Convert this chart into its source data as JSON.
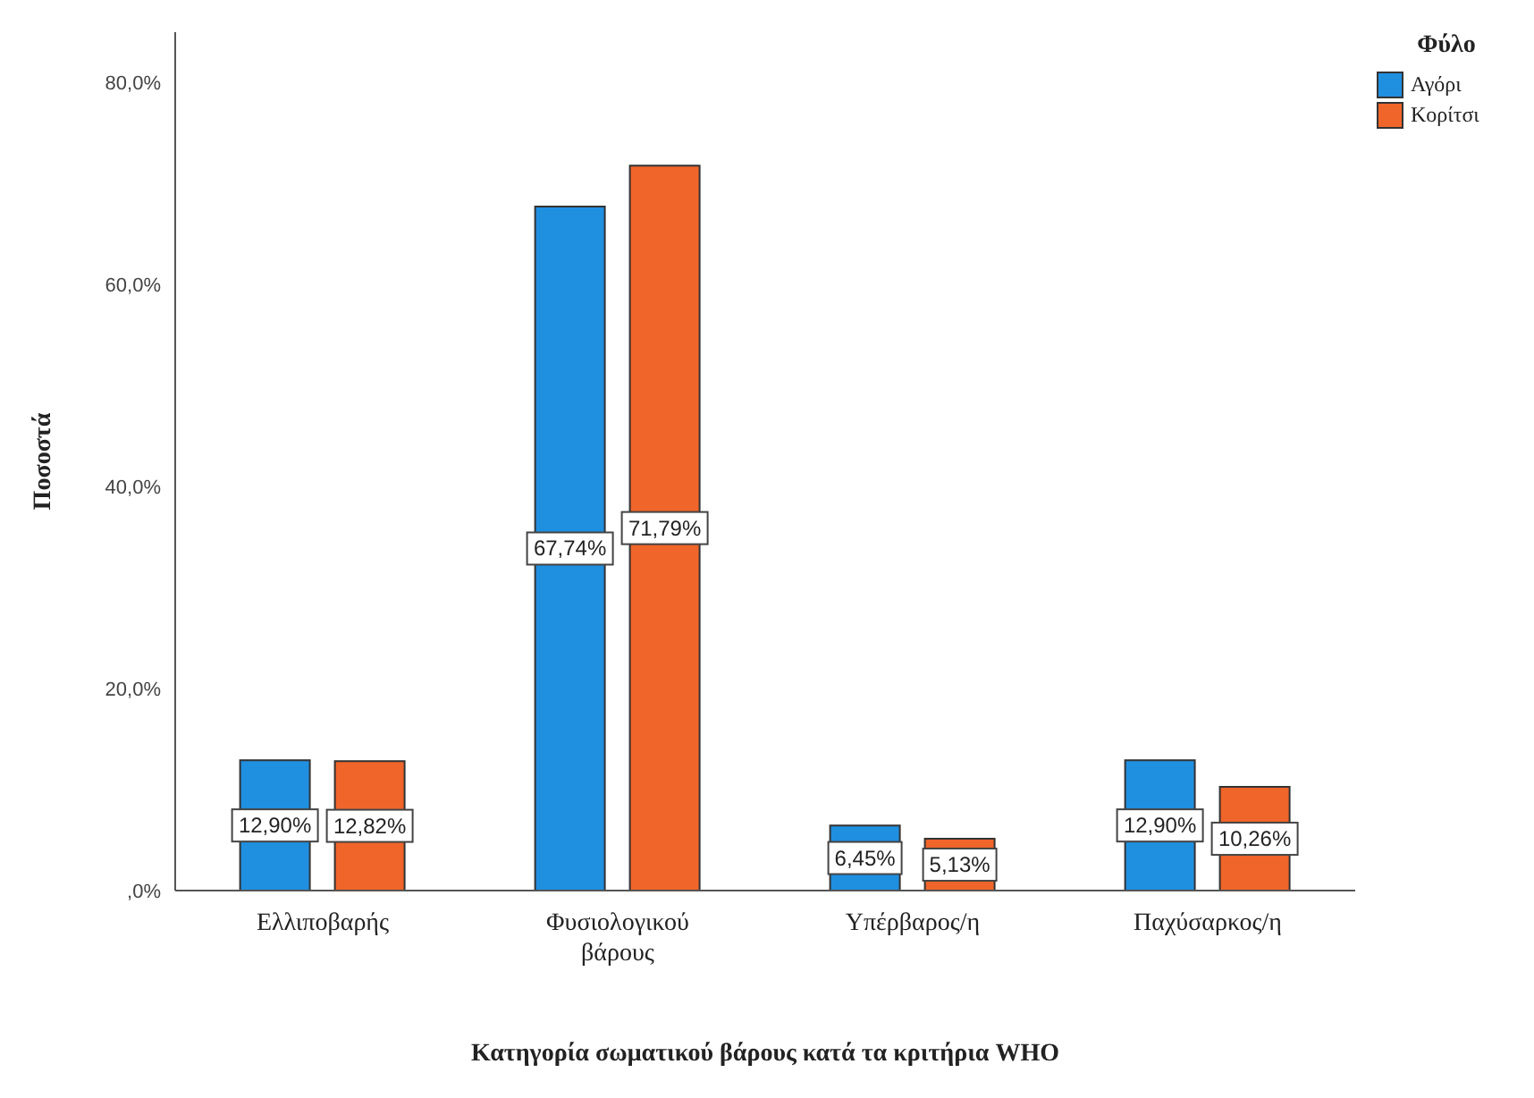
{
  "chart_data": {
    "type": "bar",
    "xlabel": "Κατηγορία σωματικού βάρους κατά τα κριτήρια WHO",
    "ylabel": "Ποσοστά",
    "legend_title": "Φύλο",
    "legend": "top right",
    "grid": false,
    "categories": [
      "Ελλιποβαρής",
      "Φυσιολογικού βάρους",
      "Υπέρβαρος/η",
      "Παχύσαρκος/η"
    ],
    "series": [
      {
        "name": "Αγόρι",
        "color": "#1f8fe0",
        "values": [
          12.9,
          67.74,
          6.45,
          12.9
        ],
        "value_labels": [
          "12,90%",
          "67,74%",
          "6,45%",
          "12,90%"
        ]
      },
      {
        "name": "Κορίτσι",
        "color": "#f0652a",
        "values": [
          12.82,
          71.79,
          5.13,
          10.26
        ],
        "value_labels": [
          "12,82%",
          "71,79%",
          "5,13%",
          "10,26%"
        ]
      }
    ],
    "ylim": [
      0,
      85
    ],
    "yticks": [
      {
        "value": 0,
        "label": ",0%"
      },
      {
        "value": 20,
        "label": "20,0%"
      },
      {
        "value": 40,
        "label": "40,0%"
      },
      {
        "value": 60,
        "label": "60,0%"
      },
      {
        "value": 80,
        "label": "80,0%"
      }
    ]
  }
}
